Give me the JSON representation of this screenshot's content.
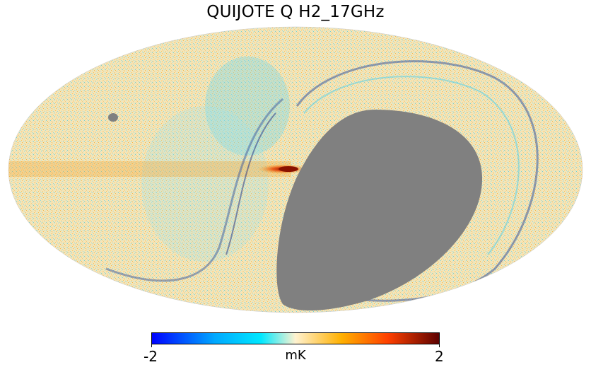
{
  "title": "QUIJOTE Q H2_17GHz",
  "projection": "mollweide",
  "colorbar": {
    "min_label": "-2",
    "max_label": "2",
    "unit": "mK",
    "range": [
      -2,
      2
    ],
    "colors": [
      "#0000ff",
      "#00aaff",
      "#00e5ff",
      "#fff2d0",
      "#ffb000",
      "#ff4000",
      "#5a0000"
    ]
  },
  "masked_color": "#808080"
}
